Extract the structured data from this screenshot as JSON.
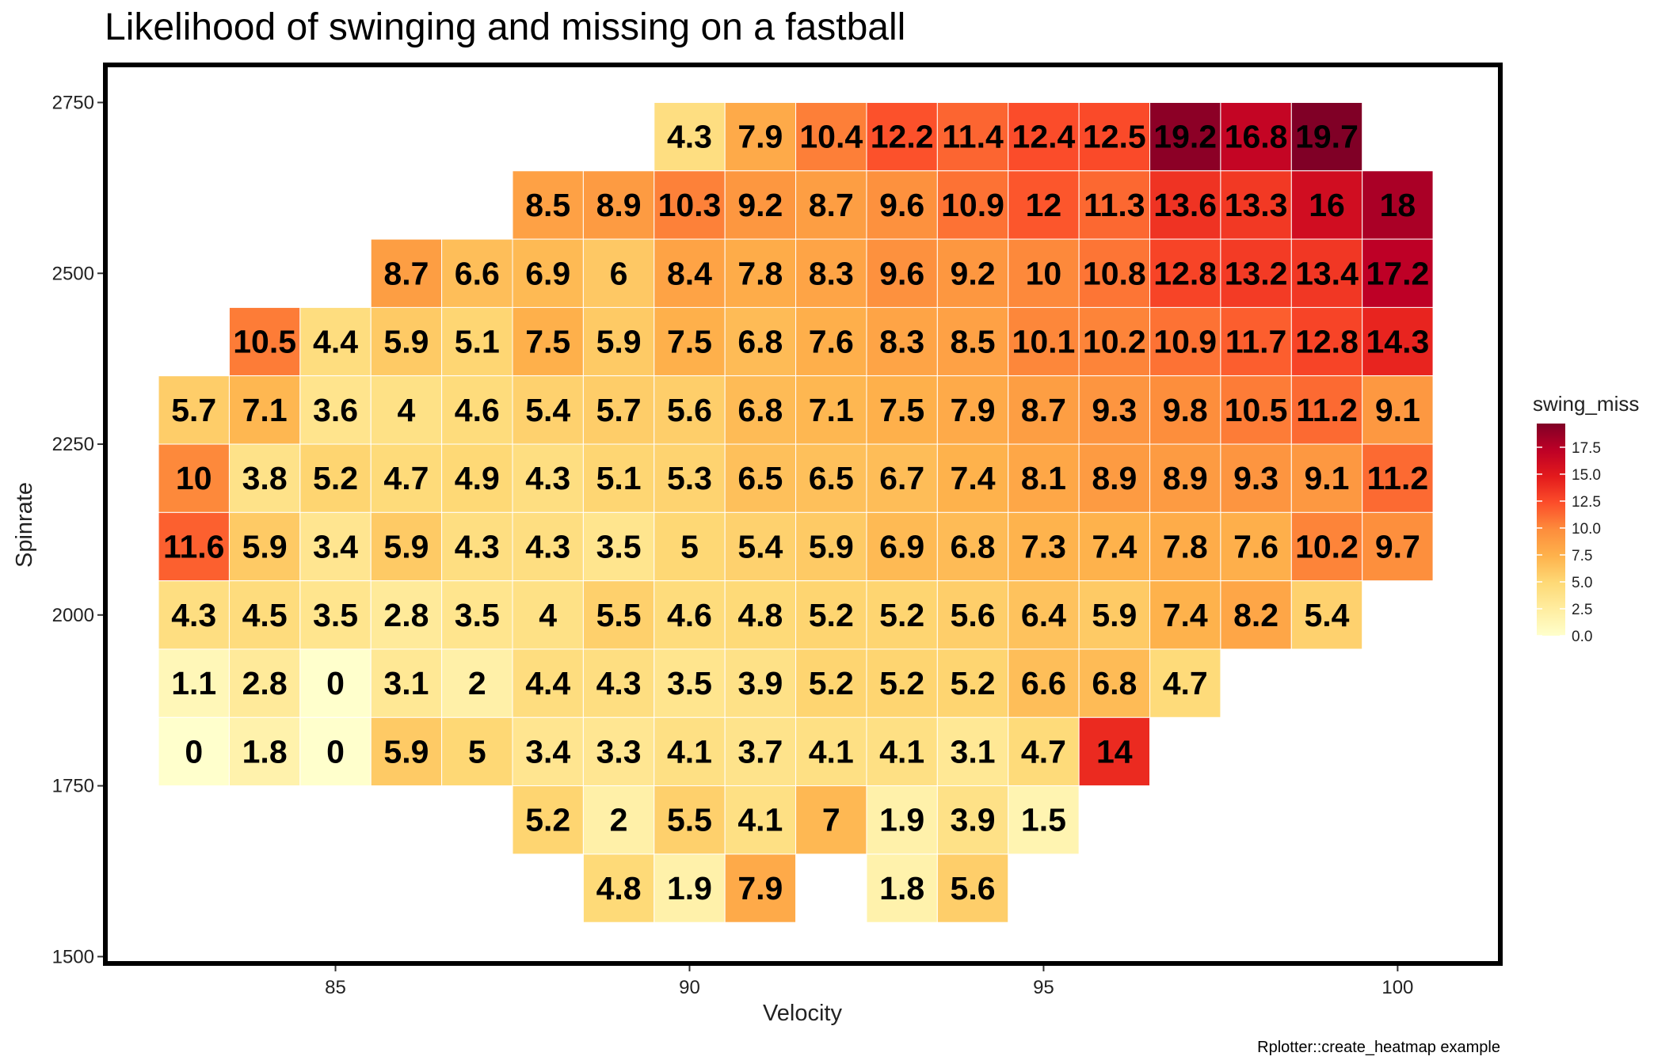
{
  "chart_data": {
    "type": "heatmap",
    "title": "Likelihood of swinging and missing on a fastball",
    "xlabel": "Velocity",
    "ylabel": "Spinrate",
    "caption": "Rplotter::create_heatmap example",
    "x_ticks": [
      85,
      90,
      95,
      100
    ],
    "y_ticks": [
      1500,
      1750,
      2000,
      2250,
      2500,
      2750
    ],
    "xlim": [
      81.75,
      101.45
    ],
    "ylim": [
      1490,
      2805
    ],
    "x_bin_width": 1,
    "y_bin_height": 100,
    "legend": {
      "title": "swing_miss",
      "breaks": [
        "0.0",
        "2.5",
        "5.0",
        "7.5",
        "10.0",
        "12.5",
        "15.0",
        "17.5"
      ],
      "min": 0,
      "max": 19.7,
      "position": "right"
    },
    "colors": {
      "scale": [
        "#ffffcc",
        "#ffeda0",
        "#fed976",
        "#feb24c",
        "#fd8d3c",
        "#fc4e2a",
        "#e31a1c",
        "#bd0026",
        "#800026"
      ],
      "panel_border": "#000000",
      "tile_border": "#ffffff"
    },
    "cells": [
      {
        "x": 90,
        "y": 2700,
        "value": 4.3
      },
      {
        "x": 91,
        "y": 2700,
        "value": 7.9
      },
      {
        "x": 92,
        "y": 2700,
        "value": 10.4
      },
      {
        "x": 93,
        "y": 2700,
        "value": 12.2
      },
      {
        "x": 94,
        "y": 2700,
        "value": 11.4
      },
      {
        "x": 95,
        "y": 2700,
        "value": 12.4
      },
      {
        "x": 96,
        "y": 2700,
        "value": 12.5
      },
      {
        "x": 97,
        "y": 2700,
        "value": 19.2
      },
      {
        "x": 98,
        "y": 2700,
        "value": 16.8
      },
      {
        "x": 99,
        "y": 2700,
        "value": 19.7
      },
      {
        "x": 88,
        "y": 2600,
        "value": 8.5
      },
      {
        "x": 89,
        "y": 2600,
        "value": 8.9
      },
      {
        "x": 90,
        "y": 2600,
        "value": 10.3
      },
      {
        "x": 91,
        "y": 2600,
        "value": 9.2
      },
      {
        "x": 92,
        "y": 2600,
        "value": 8.7
      },
      {
        "x": 93,
        "y": 2600,
        "value": 9.6
      },
      {
        "x": 94,
        "y": 2600,
        "value": 10.9
      },
      {
        "x": 95,
        "y": 2600,
        "value": 12
      },
      {
        "x": 96,
        "y": 2600,
        "value": 11.3
      },
      {
        "x": 97,
        "y": 2600,
        "value": 13.6
      },
      {
        "x": 98,
        "y": 2600,
        "value": 13.3
      },
      {
        "x": 99,
        "y": 2600,
        "value": 16
      },
      {
        "x": 100,
        "y": 2600,
        "value": 18
      },
      {
        "x": 86,
        "y": 2500,
        "value": 8.7
      },
      {
        "x": 87,
        "y": 2500,
        "value": 6.6
      },
      {
        "x": 88,
        "y": 2500,
        "value": 6.9
      },
      {
        "x": 89,
        "y": 2500,
        "value": 6
      },
      {
        "x": 90,
        "y": 2500,
        "value": 8.4
      },
      {
        "x": 91,
        "y": 2500,
        "value": 7.8
      },
      {
        "x": 92,
        "y": 2500,
        "value": 8.3
      },
      {
        "x": 93,
        "y": 2500,
        "value": 9.6
      },
      {
        "x": 94,
        "y": 2500,
        "value": 9.2
      },
      {
        "x": 95,
        "y": 2500,
        "value": 10
      },
      {
        "x": 96,
        "y": 2500,
        "value": 10.8
      },
      {
        "x": 97,
        "y": 2500,
        "value": 12.8
      },
      {
        "x": 98,
        "y": 2500,
        "value": 13.2
      },
      {
        "x": 99,
        "y": 2500,
        "value": 13.4
      },
      {
        "x": 100,
        "y": 2500,
        "value": 17.2
      },
      {
        "x": 84,
        "y": 2400,
        "value": 10.5
      },
      {
        "x": 85,
        "y": 2400,
        "value": 4.4
      },
      {
        "x": 86,
        "y": 2400,
        "value": 5.9
      },
      {
        "x": 87,
        "y": 2400,
        "value": 5.1
      },
      {
        "x": 88,
        "y": 2400,
        "value": 7.5
      },
      {
        "x": 89,
        "y": 2400,
        "value": 5.9
      },
      {
        "x": 90,
        "y": 2400,
        "value": 7.5
      },
      {
        "x": 91,
        "y": 2400,
        "value": 6.8
      },
      {
        "x": 92,
        "y": 2400,
        "value": 7.6
      },
      {
        "x": 93,
        "y": 2400,
        "value": 8.3
      },
      {
        "x": 94,
        "y": 2400,
        "value": 8.5
      },
      {
        "x": 95,
        "y": 2400,
        "value": 10.1
      },
      {
        "x": 96,
        "y": 2400,
        "value": 10.2
      },
      {
        "x": 97,
        "y": 2400,
        "value": 10.9
      },
      {
        "x": 98,
        "y": 2400,
        "value": 11.7
      },
      {
        "x": 99,
        "y": 2400,
        "value": 12.8
      },
      {
        "x": 100,
        "y": 2400,
        "value": 14.3
      },
      {
        "x": 83,
        "y": 2300,
        "value": 5.7
      },
      {
        "x": 84,
        "y": 2300,
        "value": 7.1
      },
      {
        "x": 85,
        "y": 2300,
        "value": 3.6
      },
      {
        "x": 86,
        "y": 2300,
        "value": 4
      },
      {
        "x": 87,
        "y": 2300,
        "value": 4.6
      },
      {
        "x": 88,
        "y": 2300,
        "value": 5.4
      },
      {
        "x": 89,
        "y": 2300,
        "value": 5.7
      },
      {
        "x": 90,
        "y": 2300,
        "value": 5.6
      },
      {
        "x": 91,
        "y": 2300,
        "value": 6.8
      },
      {
        "x": 92,
        "y": 2300,
        "value": 7.1
      },
      {
        "x": 93,
        "y": 2300,
        "value": 7.5
      },
      {
        "x": 94,
        "y": 2300,
        "value": 7.9
      },
      {
        "x": 95,
        "y": 2300,
        "value": 8.7
      },
      {
        "x": 96,
        "y": 2300,
        "value": 9.3
      },
      {
        "x": 97,
        "y": 2300,
        "value": 9.8
      },
      {
        "x": 98,
        "y": 2300,
        "value": 10.5
      },
      {
        "x": 99,
        "y": 2300,
        "value": 11.2
      },
      {
        "x": 100,
        "y": 2300,
        "value": 9.1
      },
      {
        "x": 83,
        "y": 2200,
        "value": 10
      },
      {
        "x": 84,
        "y": 2200,
        "value": 3.8
      },
      {
        "x": 85,
        "y": 2200,
        "value": 5.2
      },
      {
        "x": 86,
        "y": 2200,
        "value": 4.7
      },
      {
        "x": 87,
        "y": 2200,
        "value": 4.9
      },
      {
        "x": 88,
        "y": 2200,
        "value": 4.3
      },
      {
        "x": 89,
        "y": 2200,
        "value": 5.1
      },
      {
        "x": 90,
        "y": 2200,
        "value": 5.3
      },
      {
        "x": 91,
        "y": 2200,
        "value": 6.5
      },
      {
        "x": 92,
        "y": 2200,
        "value": 6.5
      },
      {
        "x": 93,
        "y": 2200,
        "value": 6.7
      },
      {
        "x": 94,
        "y": 2200,
        "value": 7.4
      },
      {
        "x": 95,
        "y": 2200,
        "value": 8.1
      },
      {
        "x": 96,
        "y": 2200,
        "value": 8.9
      },
      {
        "x": 97,
        "y": 2200,
        "value": 8.9
      },
      {
        "x": 98,
        "y": 2200,
        "value": 9.3
      },
      {
        "x": 99,
        "y": 2200,
        "value": 9.1
      },
      {
        "x": 100,
        "y": 2200,
        "value": 11.2
      },
      {
        "x": 83,
        "y": 2100,
        "value": 11.6
      },
      {
        "x": 84,
        "y": 2100,
        "value": 5.9
      },
      {
        "x": 85,
        "y": 2100,
        "value": 3.4
      },
      {
        "x": 86,
        "y": 2100,
        "value": 5.9
      },
      {
        "x": 87,
        "y": 2100,
        "value": 4.3
      },
      {
        "x": 88,
        "y": 2100,
        "value": 4.3
      },
      {
        "x": 89,
        "y": 2100,
        "value": 3.5
      },
      {
        "x": 90,
        "y": 2100,
        "value": 5
      },
      {
        "x": 91,
        "y": 2100,
        "value": 5.4
      },
      {
        "x": 92,
        "y": 2100,
        "value": 5.9
      },
      {
        "x": 93,
        "y": 2100,
        "value": 6.9
      },
      {
        "x": 94,
        "y": 2100,
        "value": 6.8
      },
      {
        "x": 95,
        "y": 2100,
        "value": 7.3
      },
      {
        "x": 96,
        "y": 2100,
        "value": 7.4
      },
      {
        "x": 97,
        "y": 2100,
        "value": 7.8
      },
      {
        "x": 98,
        "y": 2100,
        "value": 7.6
      },
      {
        "x": 99,
        "y": 2100,
        "value": 10.2
      },
      {
        "x": 100,
        "y": 2100,
        "value": 9.7
      },
      {
        "x": 83,
        "y": 2000,
        "value": 4.3
      },
      {
        "x": 84,
        "y": 2000,
        "value": 4.5
      },
      {
        "x": 85,
        "y": 2000,
        "value": 3.5
      },
      {
        "x": 86,
        "y": 2000,
        "value": 2.8
      },
      {
        "x": 87,
        "y": 2000,
        "value": 3.5
      },
      {
        "x": 88,
        "y": 2000,
        "value": 4
      },
      {
        "x": 89,
        "y": 2000,
        "value": 5.5
      },
      {
        "x": 90,
        "y": 2000,
        "value": 4.6
      },
      {
        "x": 91,
        "y": 2000,
        "value": 4.8
      },
      {
        "x": 92,
        "y": 2000,
        "value": 5.2
      },
      {
        "x": 93,
        "y": 2000,
        "value": 5.2
      },
      {
        "x": 94,
        "y": 2000,
        "value": 5.6
      },
      {
        "x": 95,
        "y": 2000,
        "value": 6.4
      },
      {
        "x": 96,
        "y": 2000,
        "value": 5.9
      },
      {
        "x": 97,
        "y": 2000,
        "value": 7.4
      },
      {
        "x": 98,
        "y": 2000,
        "value": 8.2
      },
      {
        "x": 99,
        "y": 2000,
        "value": 5.4
      },
      {
        "x": 83,
        "y": 1900,
        "value": 1.1
      },
      {
        "x": 84,
        "y": 1900,
        "value": 2.8
      },
      {
        "x": 85,
        "y": 1900,
        "value": 0
      },
      {
        "x": 86,
        "y": 1900,
        "value": 3.1
      },
      {
        "x": 87,
        "y": 1900,
        "value": 2
      },
      {
        "x": 88,
        "y": 1900,
        "value": 4.4
      },
      {
        "x": 89,
        "y": 1900,
        "value": 4.3
      },
      {
        "x": 90,
        "y": 1900,
        "value": 3.5
      },
      {
        "x": 91,
        "y": 1900,
        "value": 3.9
      },
      {
        "x": 92,
        "y": 1900,
        "value": 5.2
      },
      {
        "x": 93,
        "y": 1900,
        "value": 5.2
      },
      {
        "x": 94,
        "y": 1900,
        "value": 5.2
      },
      {
        "x": 95,
        "y": 1900,
        "value": 6.6
      },
      {
        "x": 96,
        "y": 1900,
        "value": 6.8
      },
      {
        "x": 97,
        "y": 1900,
        "value": 4.7
      },
      {
        "x": 83,
        "y": 1800,
        "value": 0
      },
      {
        "x": 84,
        "y": 1800,
        "value": 1.8
      },
      {
        "x": 85,
        "y": 1800,
        "value": 0
      },
      {
        "x": 86,
        "y": 1800,
        "value": 5.9
      },
      {
        "x": 87,
        "y": 1800,
        "value": 5
      },
      {
        "x": 88,
        "y": 1800,
        "value": 3.4
      },
      {
        "x": 89,
        "y": 1800,
        "value": 3.3
      },
      {
        "x": 90,
        "y": 1800,
        "value": 4.1
      },
      {
        "x": 91,
        "y": 1800,
        "value": 3.7
      },
      {
        "x": 92,
        "y": 1800,
        "value": 4.1
      },
      {
        "x": 93,
        "y": 1800,
        "value": 4.1
      },
      {
        "x": 94,
        "y": 1800,
        "value": 3.1
      },
      {
        "x": 95,
        "y": 1800,
        "value": 4.7
      },
      {
        "x": 96,
        "y": 1800,
        "value": 14
      },
      {
        "x": 88,
        "y": 1700,
        "value": 5.2
      },
      {
        "x": 89,
        "y": 1700,
        "value": 2
      },
      {
        "x": 90,
        "y": 1700,
        "value": 5.5
      },
      {
        "x": 91,
        "y": 1700,
        "value": 4.1
      },
      {
        "x": 92,
        "y": 1700,
        "value": 7
      },
      {
        "x": 93,
        "y": 1700,
        "value": 1.9
      },
      {
        "x": 94,
        "y": 1700,
        "value": 3.9
      },
      {
        "x": 95,
        "y": 1700,
        "value": 1.5
      },
      {
        "x": 89,
        "y": 1600,
        "value": 4.8
      },
      {
        "x": 90,
        "y": 1600,
        "value": 1.9
      },
      {
        "x": 91,
        "y": 1600,
        "value": 7.9
      },
      {
        "x": 93,
        "y": 1600,
        "value": 1.8
      },
      {
        "x": 94,
        "y": 1600,
        "value": 5.6
      }
    ]
  }
}
